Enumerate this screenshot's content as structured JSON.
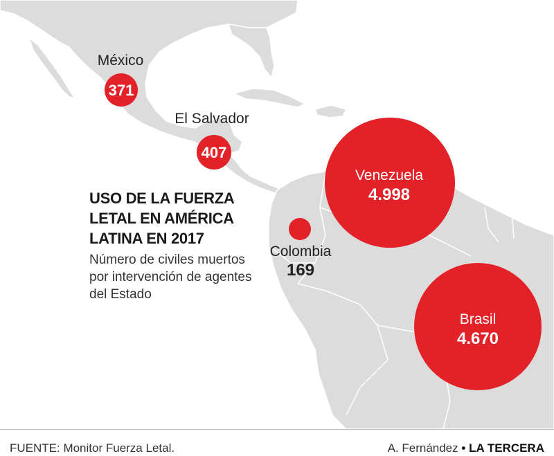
{
  "title": "USO DE LA FUERZA LETAL EN AMÉRICA LATINA EN 2017",
  "subtitle": "Número de civiles muertos por intervención de agentes del Estado",
  "countries": [
    {
      "name": "México",
      "value": "371"
    },
    {
      "name": "El Salvador",
      "value": "407"
    },
    {
      "name": "Colombia",
      "value": "169"
    },
    {
      "name": "Venezuela",
      "value": "4.998"
    },
    {
      "name": "Brasil",
      "value": "4.670"
    }
  ],
  "source": "FUENTE: Monitor Fuerza Letal.",
  "credit": {
    "author": "A. Fernández",
    "separator": "•",
    "outlet": "LA TERCERA"
  },
  "colors": {
    "bubble": "#e32128",
    "land": "#dcdcdc",
    "border": "#ffffff",
    "sea": "#ffffff"
  }
}
